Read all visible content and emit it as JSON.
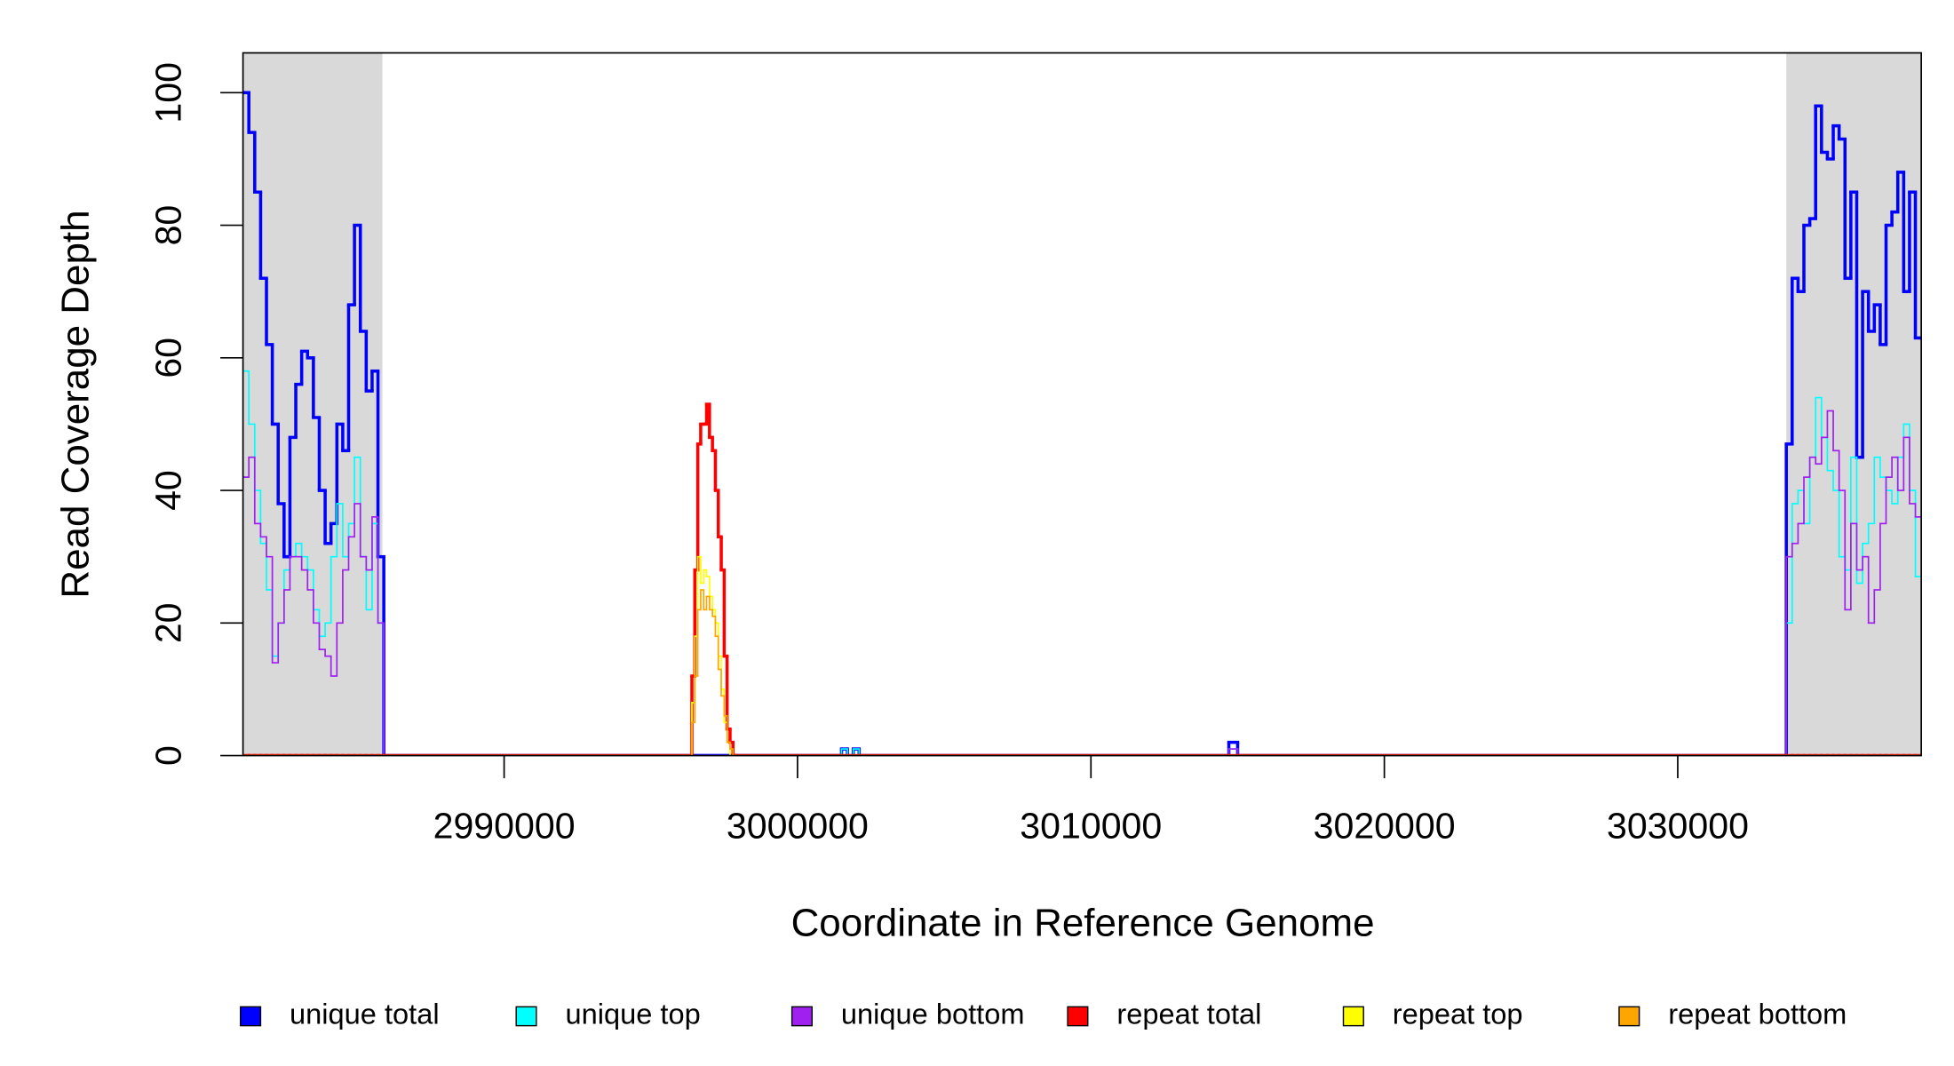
{
  "chart_data": {
    "type": "step",
    "x_label": "Coordinate in Reference Genome",
    "y_label": "Read Coverage Depth",
    "xlim": [
      2981100,
      3038300
    ],
    "ylim": [
      0,
      106
    ],
    "xticks": [
      2990000,
      3000000,
      3010000,
      3020000,
      3030000
    ],
    "yticks": [
      0,
      20,
      40,
      60,
      80,
      100
    ],
    "shaded_regions": [
      [
        2981100,
        2985850
      ],
      [
        3033700,
        3038300
      ]
    ],
    "shade_color": "#d9d9d9",
    "x": [
      2981100,
      2981300,
      2981500,
      2981700,
      2981900,
      2982100,
      2982300,
      2982500,
      2982700,
      2982900,
      2983100,
      2983300,
      2983500,
      2983700,
      2983900,
      2984100,
      2984300,
      2984500,
      2984700,
      2984900,
      2985100,
      2985300,
      2985500,
      2985700,
      2985900,
      2996400,
      2996500,
      2996600,
      2996700,
      2996800,
      2996900,
      2997000,
      2997100,
      2997200,
      2997300,
      2997400,
      2997500,
      2997600,
      2997700,
      2997800,
      2997900,
      3001500,
      3001700,
      3001900,
      3002100,
      3014700,
      3015000,
      3033700,
      3033900,
      3034100,
      3034300,
      3034500,
      3034700,
      3034900,
      3035100,
      3035300,
      3035500,
      3035700,
      3035900,
      3036100,
      3036300,
      3036500,
      3036700,
      3036900,
      3037100,
      3037300,
      3037500,
      3037700,
      3037900,
      3038100
    ],
    "series": [
      {
        "name": "unique total",
        "color": "#0000ff",
        "width": 2.5,
        "values": [
          100,
          94,
          85,
          72,
          62,
          50,
          38,
          30,
          48,
          56,
          61,
          60,
          51,
          40,
          32,
          35,
          50,
          46,
          68,
          80,
          64,
          55,
          58,
          30,
          0,
          0,
          0,
          0,
          0,
          0,
          0,
          0,
          0,
          0,
          0,
          0,
          0,
          0,
          0,
          0,
          0,
          1,
          0,
          1,
          0,
          2,
          0,
          47,
          72,
          70,
          80,
          81,
          98,
          91,
          90,
          95,
          93,
          72,
          85,
          45,
          70,
          64,
          68,
          62,
          80,
          82,
          88,
          70,
          85,
          63
        ]
      },
      {
        "name": "unique top",
        "color": "#00ffff",
        "width": 1.2,
        "values": [
          58,
          50,
          40,
          32,
          25,
          15,
          20,
          28,
          30,
          32,
          30,
          28,
          22,
          18,
          20,
          30,
          38,
          30,
          35,
          45,
          30,
          22,
          35,
          20,
          0,
          0,
          0,
          0,
          0,
          0,
          0,
          0,
          0,
          0,
          0,
          0,
          0,
          0,
          0,
          0,
          0,
          1,
          0,
          1,
          0,
          1,
          0,
          20,
          38,
          40,
          35,
          45,
          54,
          48,
          43,
          40,
          30,
          28,
          45,
          26,
          32,
          35,
          45,
          42,
          40,
          38,
          45,
          50,
          40,
          27
        ]
      },
      {
        "name": "unique bottom",
        "color": "#a020f0",
        "width": 1.2,
        "values": [
          42,
          45,
          35,
          33,
          30,
          14,
          20,
          25,
          30,
          30,
          28,
          25,
          20,
          16,
          15,
          12,
          20,
          28,
          33,
          38,
          30,
          28,
          36,
          20,
          0,
          0,
          0,
          0,
          0,
          0,
          0,
          0,
          0,
          0,
          0,
          0,
          0,
          0,
          0,
          0,
          0,
          0,
          0,
          0,
          0,
          1,
          0,
          30,
          32,
          35,
          42,
          45,
          44,
          48,
          52,
          46,
          40,
          22,
          35,
          28,
          30,
          20,
          25,
          35,
          42,
          45,
          40,
          48,
          38,
          36
        ]
      },
      {
        "name": "repeat total",
        "color": "#ff0000",
        "width": 2.5,
        "values": [
          0,
          0,
          0,
          0,
          0,
          0,
          0,
          0,
          0,
          0,
          0,
          0,
          0,
          0,
          0,
          0,
          0,
          0,
          0,
          0,
          0,
          0,
          0,
          0,
          0,
          12,
          28,
          47,
          50,
          50,
          53,
          48,
          46,
          40,
          33,
          28,
          15,
          4,
          2,
          0,
          0,
          0,
          0,
          0,
          0,
          0,
          0,
          0,
          0,
          0,
          0,
          0,
          0,
          0,
          0,
          0,
          0,
          0,
          0,
          0,
          0,
          0,
          0,
          0,
          0,
          0,
          0,
          0,
          0,
          0
        ]
      },
      {
        "name": "repeat top",
        "color": "#ffff00",
        "width": 1.2,
        "values": [
          0,
          0,
          0,
          0,
          0,
          0,
          0,
          0,
          0,
          0,
          0,
          0,
          0,
          0,
          0,
          0,
          0,
          0,
          0,
          0,
          0,
          0,
          0,
          0,
          0,
          8,
          18,
          30,
          26,
          28,
          27,
          24,
          22,
          20,
          15,
          10,
          5,
          2,
          0,
          0,
          0,
          0,
          0,
          0,
          0,
          0,
          0,
          0,
          0,
          0,
          0,
          0,
          0,
          0,
          0,
          0,
          0,
          0,
          0,
          0,
          0,
          0,
          0,
          0,
          0,
          0,
          0,
          0,
          0,
          0
        ]
      },
      {
        "name": "repeat bottom",
        "color": "#ffa500",
        "width": 1.2,
        "values": [
          0,
          0,
          0,
          0,
          0,
          0,
          0,
          0,
          0,
          0,
          0,
          0,
          0,
          0,
          0,
          0,
          0,
          0,
          0,
          0,
          0,
          0,
          0,
          0,
          0,
          5,
          12,
          22,
          25,
          22,
          24,
          22,
          21,
          18,
          13,
          9,
          6,
          2,
          1,
          0,
          0,
          0,
          0,
          0,
          0,
          0,
          0,
          0,
          0,
          0,
          0,
          0,
          0,
          0,
          0,
          0,
          0,
          0,
          0,
          0,
          0,
          0,
          0,
          0,
          0,
          0,
          0,
          0,
          0,
          0
        ]
      }
    ]
  }
}
